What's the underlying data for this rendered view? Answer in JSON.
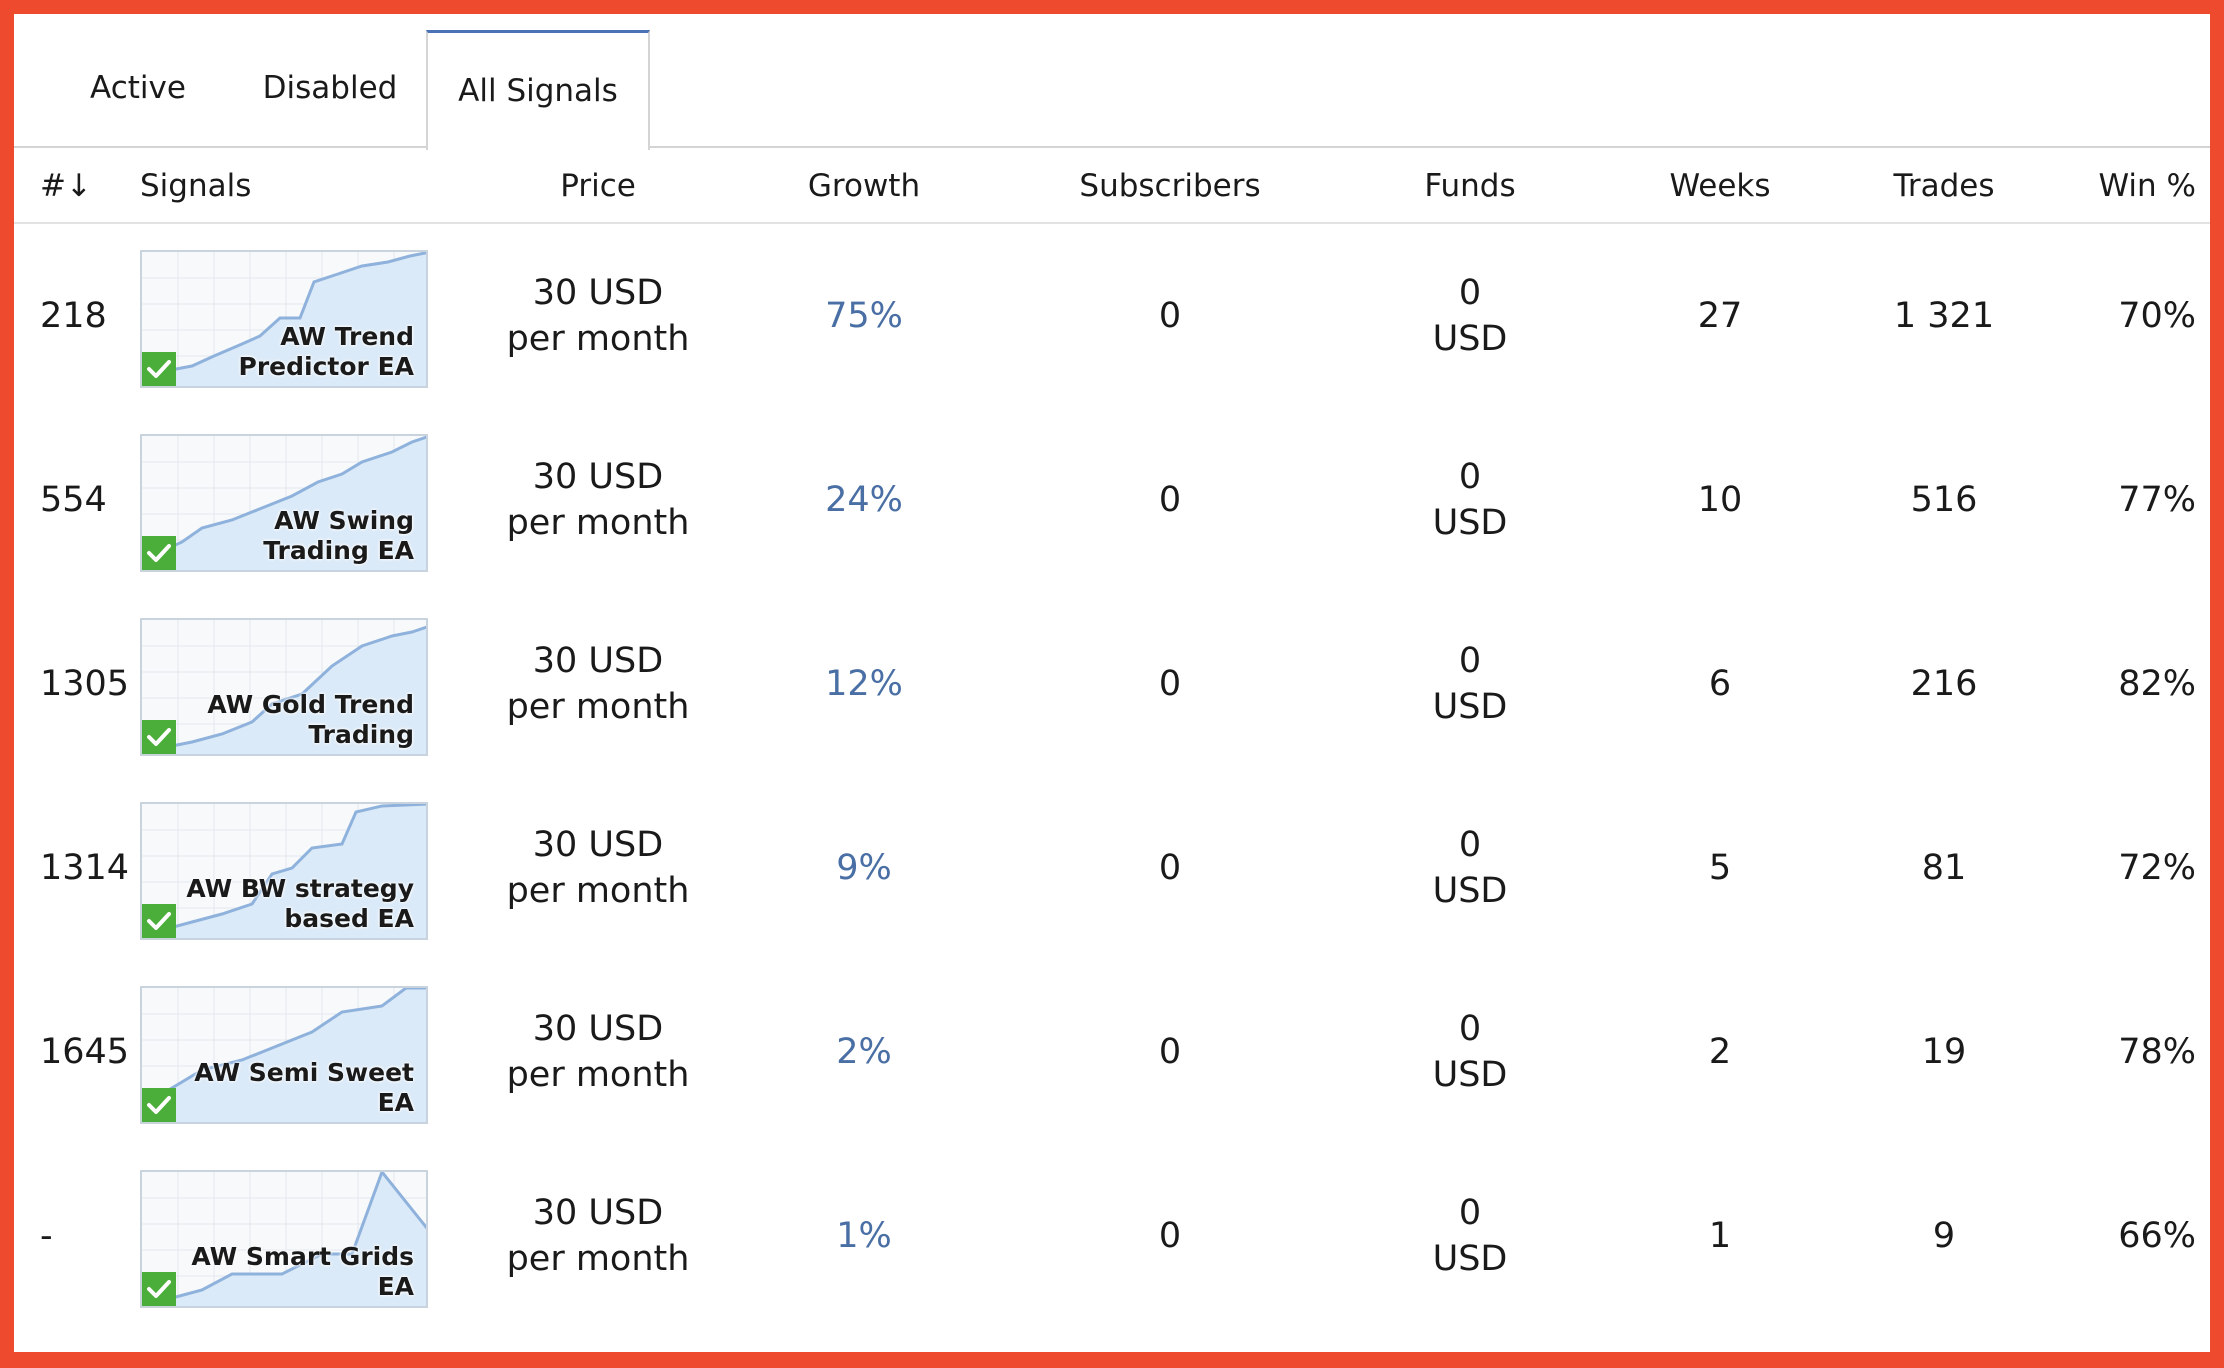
{
  "tabs": [
    {
      "label": "Active"
    },
    {
      "label": "Disabled"
    },
    {
      "label": "All Signals"
    }
  ],
  "active_tab": "All Signals",
  "columns": {
    "num": "#↓",
    "signals": "Signals",
    "price": "Price",
    "growth": "Growth",
    "subscribers": "Subscribers",
    "funds": "Funds",
    "weeks": "Weeks",
    "trades": "Trades",
    "win": "Win %"
  },
  "colors": {
    "growth_text": "#4a6fa5",
    "verified_badge": "#4cae3a",
    "chart_line": "#8fb2dc",
    "chart_fill": "#dbeaf8",
    "frame_border": "#ee4a2d"
  },
  "rows": [
    {
      "num": "218",
      "name": "AW Trend Predictor EA",
      "price": "30 USD",
      "period": "per month",
      "growth": "75%",
      "subscribers": "0",
      "funds_value": "0",
      "funds_currency": "USD",
      "weeks": "27",
      "trades": "1 321",
      "win": "70%",
      "icon": "verified-check-icon"
    },
    {
      "num": "554",
      "name": "AW Swing Trading EA",
      "price": "30 USD",
      "period": "per month",
      "growth": "24%",
      "subscribers": "0",
      "funds_value": "0",
      "funds_currency": "USD",
      "weeks": "10",
      "trades": "516",
      "win": "77%",
      "icon": "verified-check-icon"
    },
    {
      "num": "1305",
      "name": "AW Gold Trend Trading",
      "price": "30 USD",
      "period": "per month",
      "growth": "12%",
      "subscribers": "0",
      "funds_value": "0",
      "funds_currency": "USD",
      "weeks": "6",
      "trades": "216",
      "win": "82%",
      "icon": "verified-check-icon"
    },
    {
      "num": "1314",
      "name": "AW BW strategy based EA",
      "price": "30 USD",
      "period": "per month",
      "growth": "9%",
      "subscribers": "0",
      "funds_value": "0",
      "funds_currency": "USD",
      "weeks": "5",
      "trades": "81",
      "win": "72%",
      "icon": "verified-check-icon"
    },
    {
      "num": "1645",
      "name": "AW Semi Sweet EA",
      "price": "30 USD",
      "period": "per month",
      "growth": "2%",
      "subscribers": "0",
      "funds_value": "0",
      "funds_currency": "USD",
      "weeks": "2",
      "trades": "19",
      "win": "78%",
      "icon": "verified-check-icon"
    },
    {
      "num": "-",
      "name": "AW Smart Grids EA",
      "price": "30 USD",
      "period": "per month",
      "growth": "1%",
      "subscribers": "0",
      "funds_value": "0",
      "funds_currency": "USD",
      "weeks": "1",
      "trades": "9",
      "win": "66%",
      "icon": "verified-check-icon"
    }
  ]
}
